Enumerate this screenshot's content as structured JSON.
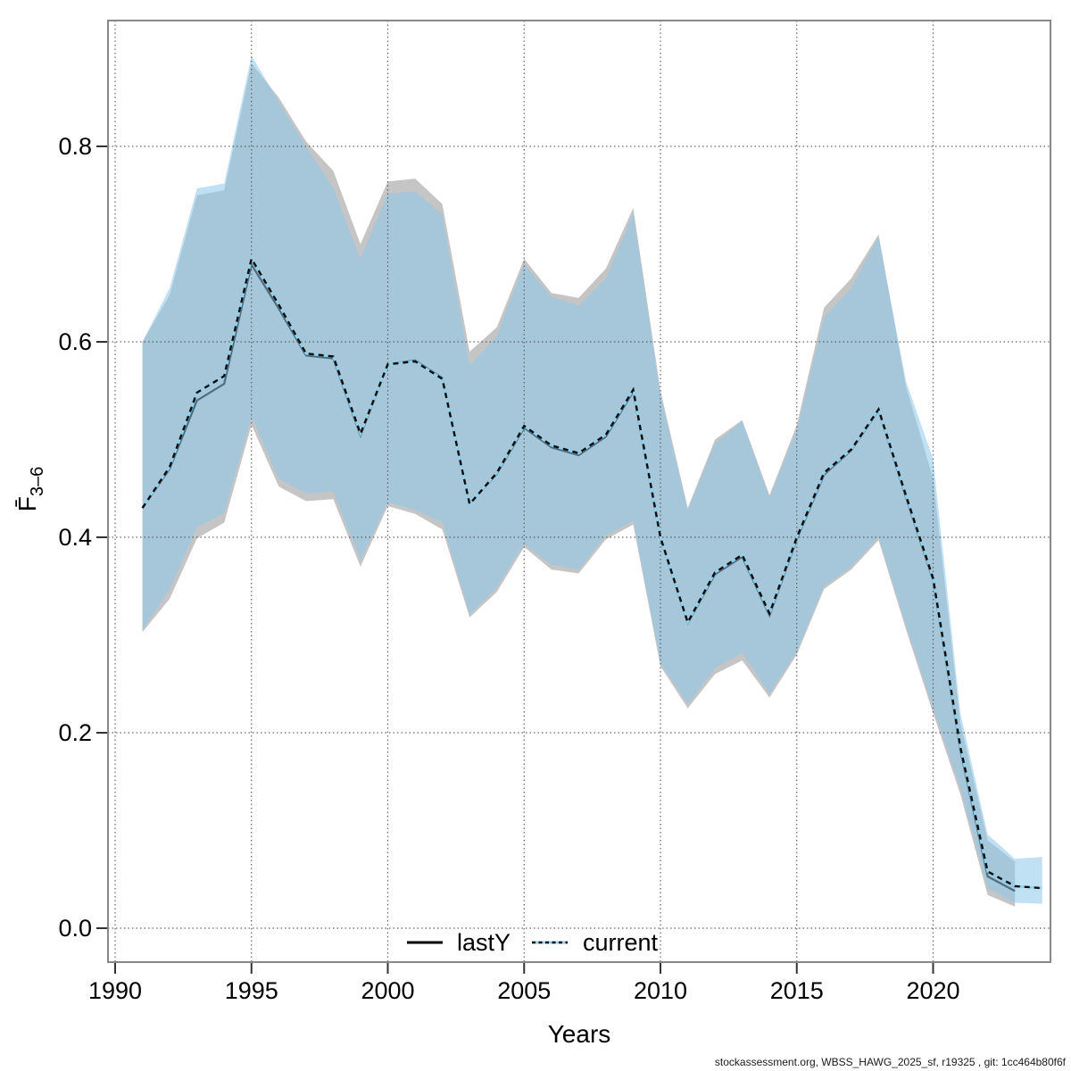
{
  "watermark": "stockassessment.org, WBSS_HAWG_2025_sf, r19325 , git: 1cc464b80f6f",
  "axes": {
    "x_label": "Years",
    "y_label_main": "F̄",
    "y_label_sub": "3–6",
    "x_ticks": [
      1990,
      1995,
      2000,
      2005,
      2010,
      2015,
      2020
    ],
    "y_ticks": [
      {
        "v": 0.0,
        "label": "0.0"
      },
      {
        "v": 0.2,
        "label": "0.2"
      },
      {
        "v": 0.4,
        "label": "0.4"
      },
      {
        "v": 0.6,
        "label": "0.6"
      },
      {
        "v": 0.8,
        "label": "0.8"
      }
    ]
  },
  "legend": {
    "lasty_label": "lastY",
    "current_label": "current"
  },
  "colors": {
    "plot_border": "#888888",
    "grid": "#4d4d4d",
    "lasty_band": "#c5c5c5",
    "current_band": "rgba(140,200,235,0.55)",
    "lasty_line": "#000000",
    "current_line_dash": "#0d0d0d",
    "current_line_base": "#8ed1ec"
  },
  "chart_data": {
    "type": "line",
    "title": "",
    "xlabel": "Years",
    "ylabel": "Fbar_3-6",
    "xlim": [
      1989.7,
      2024.3
    ],
    "ylim": [
      -0.035,
      0.93
    ],
    "grid": "dotted",
    "legend_position": "bottom-center",
    "series": [
      {
        "name": "lastY",
        "line_style": "solid",
        "band": "gray",
        "years": [
          1991,
          1992,
          1993,
          1994,
          1995,
          1996,
          1997,
          1998,
          1999,
          2000,
          2001,
          2002,
          2003,
          2004,
          2005,
          2006,
          2007,
          2008,
          2009,
          2010,
          2011,
          2012,
          2013,
          2014,
          2015,
          2016,
          2017,
          2018,
          2019,
          2020,
          2021,
          2022,
          2023
        ],
        "mean": [
          0.43,
          0.47,
          0.54,
          0.557,
          0.679,
          0.634,
          0.586,
          0.583,
          0.504,
          0.577,
          0.581,
          0.563,
          0.434,
          0.465,
          0.512,
          0.492,
          0.484,
          0.503,
          0.549,
          0.399,
          0.312,
          0.362,
          0.38,
          0.32,
          0.398,
          0.464,
          0.489,
          0.53,
          0.441,
          0.356,
          0.182,
          0.053,
          0.038
        ],
        "lo": [
          0.303,
          0.337,
          0.399,
          0.415,
          0.515,
          0.452,
          0.437,
          0.439,
          0.37,
          0.432,
          0.424,
          0.408,
          0.318,
          0.344,
          0.39,
          0.367,
          0.363,
          0.398,
          0.413,
          0.268,
          0.225,
          0.26,
          0.274,
          0.236,
          0.28,
          0.347,
          0.367,
          0.397,
          0.306,
          0.22,
          0.137,
          0.034,
          0.022
        ],
        "hi": [
          0.6,
          0.648,
          0.75,
          0.755,
          0.885,
          0.85,
          0.805,
          0.775,
          0.7,
          0.764,
          0.767,
          0.741,
          0.59,
          0.615,
          0.685,
          0.65,
          0.645,
          0.675,
          0.737,
          0.55,
          0.43,
          0.5,
          0.52,
          0.443,
          0.515,
          0.635,
          0.665,
          0.71,
          0.555,
          0.46,
          0.21,
          0.09,
          0.068
        ]
      },
      {
        "name": "current",
        "line_style": "dashed",
        "band": "lightblue",
        "years": [
          1991,
          1992,
          1993,
          1994,
          1995,
          1996,
          1997,
          1998,
          1999,
          2000,
          2001,
          2002,
          2003,
          2004,
          2005,
          2006,
          2007,
          2008,
          2009,
          2010,
          2011,
          2012,
          2013,
          2014,
          2015,
          2016,
          2017,
          2018,
          2019,
          2020,
          2021,
          2022,
          2023,
          2024
        ],
        "mean": [
          0.43,
          0.472,
          0.548,
          0.565,
          0.685,
          0.638,
          0.588,
          0.585,
          0.506,
          0.577,
          0.58,
          0.562,
          0.434,
          0.466,
          0.514,
          0.494,
          0.486,
          0.505,
          0.551,
          0.4,
          0.313,
          0.364,
          0.382,
          0.322,
          0.4,
          0.466,
          0.49,
          0.531,
          0.443,
          0.358,
          0.185,
          0.058,
          0.043,
          0.041
        ],
        "lo": [
          0.305,
          0.347,
          0.41,
          0.425,
          0.523,
          0.46,
          0.445,
          0.447,
          0.377,
          0.436,
          0.428,
          0.415,
          0.321,
          0.349,
          0.393,
          0.372,
          0.367,
          0.402,
          0.417,
          0.271,
          0.229,
          0.266,
          0.282,
          0.24,
          0.283,
          0.35,
          0.37,
          0.4,
          0.31,
          0.225,
          0.143,
          0.041,
          0.026,
          0.025
        ],
        "hi": [
          0.6,
          0.655,
          0.757,
          0.762,
          0.893,
          0.846,
          0.8,
          0.757,
          0.685,
          0.752,
          0.754,
          0.73,
          0.576,
          0.606,
          0.68,
          0.646,
          0.637,
          0.665,
          0.732,
          0.545,
          0.428,
          0.496,
          0.519,
          0.441,
          0.51,
          0.625,
          0.655,
          0.708,
          0.56,
          0.48,
          0.22,
          0.096,
          0.071,
          0.073
        ]
      }
    ]
  }
}
